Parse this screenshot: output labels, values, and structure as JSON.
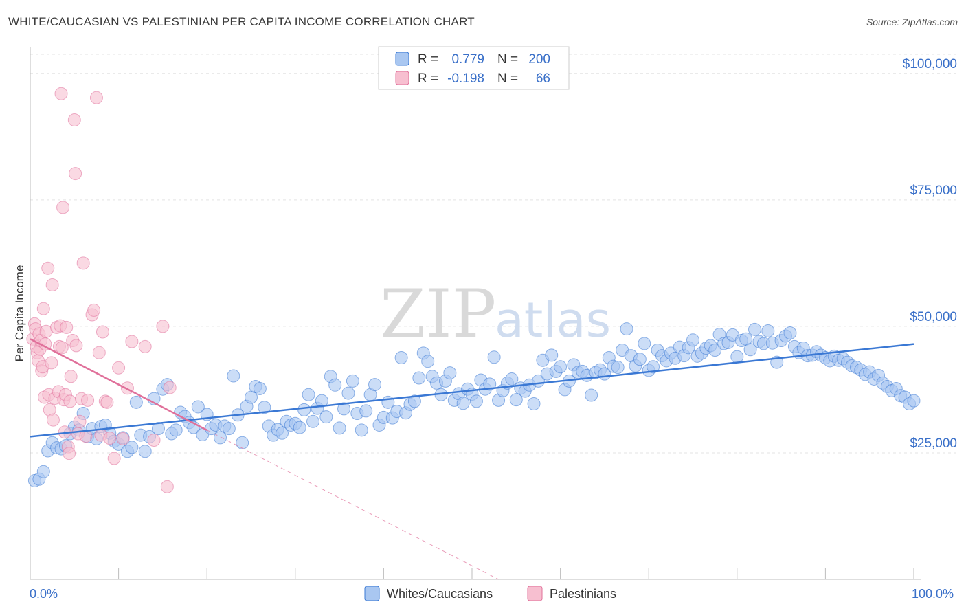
{
  "header": {
    "title": "WHITE/CAUCASIAN VS PALESTINIAN PER CAPITA INCOME CORRELATION CHART",
    "source": "Source: ZipAtlas.com"
  },
  "watermark": {
    "part1": "ZIP",
    "part2": "atlas"
  },
  "legend": {
    "rows": [
      {
        "r_label": "R =",
        "r_value": "0.779",
        "n_label": "N =",
        "n_value": "200",
        "color": "#8fb5ec"
      },
      {
        "r_label": "R =",
        "r_value": "-0.198",
        "n_label": "N =",
        "n_value": "66",
        "color": "#f3a8c0"
      }
    ]
  },
  "bottom_legend": [
    {
      "label": "Whites/Caucasians",
      "color": "#8fb5ec"
    },
    {
      "label": "Palestinians",
      "color": "#f3a8c0"
    }
  ],
  "chart_data": {
    "type": "scatter",
    "title": "WHITE/CAUCASIAN VS PALESTINIAN PER CAPITA INCOME CORRELATION CHART",
    "xlabel": "",
    "ylabel": "Per Capita Income",
    "xlim": [
      0,
      100
    ],
    "ylim": [
      0,
      105000
    ],
    "x_tick_labels": [
      "0.0%",
      "100.0%"
    ],
    "y_ticks": [
      25000,
      50000,
      75000,
      100000
    ],
    "y_tick_labels": [
      "$25,000",
      "$50,000",
      "$75,000",
      "$100,000"
    ],
    "series": [
      {
        "name": "Whites/Caucasians",
        "color": "#3a78d4",
        "fill": "#a9c7f1",
        "trend": {
          "x0": 0,
          "y0": 28200,
          "x1": 100,
          "y1": 46500
        },
        "points": [
          [
            0.5,
            19500
          ],
          [
            1,
            19800
          ],
          [
            1.5,
            21300
          ],
          [
            2,
            25400
          ],
          [
            2.5,
            27000
          ],
          [
            3,
            26000
          ],
          [
            3.5,
            25800
          ],
          [
            4,
            26400
          ],
          [
            4.5,
            28800
          ],
          [
            5,
            30100
          ],
          [
            5.5,
            29500
          ],
          [
            6,
            32800
          ],
          [
            6.5,
            28200
          ],
          [
            7,
            29800
          ],
          [
            7.5,
            27800
          ],
          [
            8,
            30200
          ],
          [
            8.5,
            30500
          ],
          [
            9,
            28900
          ],
          [
            9.5,
            27300
          ],
          [
            10,
            26700
          ],
          [
            10.5,
            28000
          ],
          [
            11,
            25300
          ],
          [
            11.5,
            26100
          ],
          [
            12,
            35000
          ],
          [
            12.5,
            28500
          ],
          [
            13,
            25300
          ],
          [
            13.5,
            28200
          ],
          [
            14,
            35700
          ],
          [
            14.5,
            29800
          ],
          [
            15,
            37600
          ],
          [
            15.5,
            38500
          ],
          [
            16,
            28800
          ],
          [
            16.5,
            29500
          ],
          [
            17,
            33000
          ],
          [
            17.5,
            32200
          ],
          [
            18,
            31000
          ],
          [
            18.5,
            30000
          ],
          [
            19,
            34100
          ],
          [
            19.5,
            28600
          ],
          [
            20,
            32600
          ],
          [
            20.5,
            29800
          ],
          [
            21,
            30500
          ],
          [
            21.5,
            28000
          ],
          [
            22,
            30300
          ],
          [
            22.5,
            29800
          ],
          [
            23,
            40200
          ],
          [
            23.5,
            32500
          ],
          [
            24,
            27000
          ],
          [
            24.5,
            34200
          ],
          [
            25,
            36000
          ],
          [
            25.5,
            38100
          ],
          [
            26,
            37700
          ],
          [
            26.5,
            34000
          ],
          [
            27,
            30300
          ],
          [
            27.5,
            28500
          ],
          [
            28,
            29600
          ],
          [
            28.5,
            28900
          ],
          [
            29,
            31200
          ],
          [
            29.5,
            30500
          ],
          [
            30,
            30800
          ],
          [
            30.5,
            30000
          ],
          [
            31,
            33500
          ],
          [
            31.5,
            36500
          ],
          [
            32,
            31200
          ],
          [
            32.5,
            33800
          ],
          [
            33,
            35300
          ],
          [
            33.5,
            32100
          ],
          [
            34,
            40100
          ],
          [
            34.5,
            38400
          ],
          [
            35,
            29900
          ],
          [
            35.5,
            33700
          ],
          [
            36,
            36800
          ],
          [
            36.5,
            39200
          ],
          [
            37,
            32800
          ],
          [
            37.5,
            29500
          ],
          [
            38,
            33300
          ],
          [
            38.5,
            36500
          ],
          [
            39,
            38500
          ],
          [
            39.5,
            30500
          ],
          [
            40,
            32000
          ],
          [
            40.5,
            35000
          ],
          [
            41,
            31900
          ],
          [
            41.5,
            33200
          ],
          [
            42,
            43800
          ],
          [
            42.5,
            32900
          ],
          [
            43,
            34600
          ],
          [
            43.5,
            35200
          ],
          [
            44,
            39800
          ],
          [
            44.5,
            44700
          ],
          [
            45,
            43100
          ],
          [
            45.5,
            40100
          ],
          [
            46,
            38800
          ],
          [
            46.5,
            36500
          ],
          [
            47,
            39200
          ],
          [
            47.5,
            40800
          ],
          [
            48,
            35400
          ],
          [
            48.5,
            36700
          ],
          [
            49,
            34800
          ],
          [
            49.5,
            37600
          ],
          [
            50,
            36600
          ],
          [
            50.5,
            35200
          ],
          [
            51,
            39400
          ],
          [
            51.5,
            37600
          ],
          [
            52,
            38600
          ],
          [
            52.5,
            43900
          ],
          [
            53,
            35400
          ],
          [
            53.5,
            37300
          ],
          [
            54,
            38800
          ],
          [
            54.5,
            39600
          ],
          [
            55,
            35500
          ],
          [
            55.5,
            37800
          ],
          [
            56,
            37200
          ],
          [
            56.5,
            38400
          ],
          [
            57,
            34700
          ],
          [
            57.5,
            39200
          ],
          [
            58,
            43300
          ],
          [
            58.5,
            40600
          ],
          [
            59,
            44300
          ],
          [
            59.5,
            41100
          ],
          [
            60,
            42000
          ],
          [
            60.5,
            37500
          ],
          [
            61,
            39200
          ],
          [
            61.5,
            42400
          ],
          [
            62,
            40900
          ],
          [
            62.5,
            41100
          ],
          [
            63,
            40300
          ],
          [
            63.5,
            36400
          ],
          [
            64,
            40900
          ],
          [
            64.5,
            41400
          ],
          [
            65,
            40600
          ],
          [
            65.5,
            43800
          ],
          [
            66,
            42100
          ],
          [
            66.5,
            41900
          ],
          [
            67,
            45300
          ],
          [
            67.5,
            49500
          ],
          [
            68,
            44200
          ],
          [
            68.5,
            42200
          ],
          [
            69,
            43500
          ],
          [
            69.5,
            46600
          ],
          [
            70,
            41300
          ],
          [
            70.5,
            42000
          ],
          [
            71,
            45300
          ],
          [
            71.5,
            44200
          ],
          [
            72,
            43200
          ],
          [
            72.5,
            44700
          ],
          [
            73,
            43700
          ],
          [
            73.5,
            45900
          ],
          [
            74,
            44200
          ],
          [
            74.5,
            45800
          ],
          [
            75,
            47300
          ],
          [
            75.5,
            44100
          ],
          [
            76,
            44700
          ],
          [
            76.5,
            45700
          ],
          [
            77,
            46200
          ],
          [
            77.5,
            45300
          ],
          [
            78,
            48400
          ],
          [
            78.5,
            46600
          ],
          [
            79,
            46800
          ],
          [
            79.5,
            48300
          ],
          [
            80,
            44000
          ],
          [
            80.5,
            47200
          ],
          [
            81,
            47500
          ],
          [
            81.5,
            45400
          ],
          [
            82,
            49400
          ],
          [
            82.5,
            47000
          ],
          [
            83,
            46600
          ],
          [
            83.5,
            49100
          ],
          [
            84,
            46700
          ],
          [
            84.5,
            42900
          ],
          [
            85,
            47200
          ],
          [
            85.5,
            48100
          ],
          [
            86,
            48700
          ],
          [
            86.5,
            46000
          ],
          [
            87,
            44800
          ],
          [
            87.5,
            45700
          ],
          [
            88,
            44200
          ],
          [
            88.5,
            44300
          ],
          [
            89,
            45000
          ],
          [
            89.5,
            44300
          ],
          [
            90,
            43800
          ],
          [
            90.5,
            43200
          ],
          [
            91,
            44100
          ],
          [
            91.5,
            43300
          ],
          [
            92,
            43600
          ],
          [
            92.5,
            42900
          ],
          [
            93,
            42200
          ],
          [
            93.5,
            41900
          ],
          [
            94,
            41400
          ],
          [
            94.5,
            40500
          ],
          [
            95,
            41000
          ],
          [
            95.5,
            39600
          ],
          [
            96,
            40300
          ],
          [
            96.5,
            38800
          ],
          [
            97,
            38100
          ],
          [
            97.5,
            37300
          ],
          [
            98,
            37700
          ],
          [
            98.5,
            36300
          ],
          [
            99,
            36000
          ],
          [
            99.5,
            34700
          ],
          [
            100,
            35300
          ]
        ]
      },
      {
        "name": "Palestinians",
        "color": "#e0709a",
        "fill": "#f7bfd0",
        "trend": {
          "x0": 0,
          "y0": 47500,
          "x1": 20,
          "y1": 29500,
          "dash_x1": 53,
          "dash_y1": 0
        },
        "points": [
          [
            0.3,
            47500
          ],
          [
            0.5,
            50500
          ],
          [
            0.6,
            49500
          ],
          [
            0.7,
            46000
          ],
          [
            0.8,
            44800
          ],
          [
            0.9,
            43200
          ],
          [
            1,
            48500
          ],
          [
            1.1,
            45500
          ],
          [
            1.2,
            47200
          ],
          [
            1.3,
            41200
          ],
          [
            1.4,
            42000
          ],
          [
            1.5,
            53500
          ],
          [
            1.6,
            36000
          ],
          [
            1.7,
            46500
          ],
          [
            1.8,
            49000
          ],
          [
            2,
            61500
          ],
          [
            2.1,
            36500
          ],
          [
            2.2,
            33500
          ],
          [
            2.4,
            42800
          ],
          [
            2.5,
            58200
          ],
          [
            2.6,
            31500
          ],
          [
            2.8,
            35800
          ],
          [
            3,
            49800
          ],
          [
            3.2,
            37100
          ],
          [
            3.3,
            46000
          ],
          [
            3.4,
            50100
          ],
          [
            3.5,
            96000
          ],
          [
            3.6,
            45800
          ],
          [
            3.7,
            73500
          ],
          [
            3.8,
            35500
          ],
          [
            3.9,
            29100
          ],
          [
            4,
            36500
          ],
          [
            4.1,
            49800
          ],
          [
            4.3,
            26200
          ],
          [
            4.4,
            24900
          ],
          [
            4.5,
            35200
          ],
          [
            4.6,
            40100
          ],
          [
            4.8,
            47200
          ],
          [
            5,
            90800
          ],
          [
            5.1,
            80200
          ],
          [
            5.2,
            46200
          ],
          [
            5.4,
            28800
          ],
          [
            5.6,
            31200
          ],
          [
            5.8,
            35700
          ],
          [
            6,
            62500
          ],
          [
            6.3,
            28300
          ],
          [
            6.5,
            35400
          ],
          [
            7,
            52300
          ],
          [
            7.2,
            53200
          ],
          [
            7.5,
            95200
          ],
          [
            7.8,
            44800
          ],
          [
            8,
            28500
          ],
          [
            8.2,
            48900
          ],
          [
            8.5,
            35200
          ],
          [
            8.7,
            35000
          ],
          [
            9,
            27900
          ],
          [
            9.5,
            23900
          ],
          [
            10,
            41800
          ],
          [
            10.5,
            27800
          ],
          [
            11,
            37800
          ],
          [
            11.5,
            47000
          ],
          [
            13,
            46000
          ],
          [
            14,
            27500
          ],
          [
            15,
            50000
          ],
          [
            15.5,
            18300
          ],
          [
            15.8,
            37900
          ]
        ]
      }
    ]
  }
}
